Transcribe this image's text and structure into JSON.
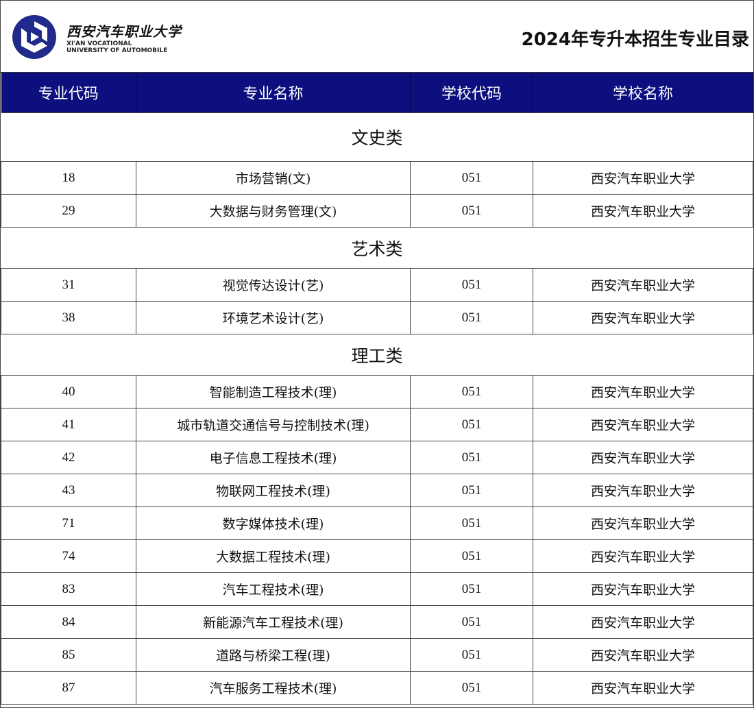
{
  "header": {
    "logo_cn": "西安汽车职业大学",
    "logo_en_1": "XI'AN VOCATIONAL",
    "logo_en_2": "UNIVERSITY OF AUTOMOBILE",
    "title": "2024年专升本招生专业目录",
    "brand_color": "#0d0f7e"
  },
  "table": {
    "columns": [
      "专业代码",
      "专业名称",
      "学校代码",
      "学校名称"
    ],
    "sections": [
      {
        "category": "文史类",
        "rows": [
          [
            "18",
            "市场营销(文)",
            "051",
            "西安汽车职业大学"
          ],
          [
            "29",
            "大数据与财务管理(文)",
            "051",
            "西安汽车职业大学"
          ]
        ]
      },
      {
        "category": "艺术类",
        "rows": [
          [
            "31",
            "视觉传达设计(艺)",
            "051",
            "西安汽车职业大学"
          ],
          [
            "38",
            "环境艺术设计(艺)",
            "051",
            "西安汽车职业大学"
          ]
        ]
      },
      {
        "category": "理工类",
        "rows": [
          [
            "40",
            "智能制造工程技术(理)",
            "051",
            "西安汽车职业大学"
          ],
          [
            "41",
            "城市轨道交通信号与控制技术(理)",
            "051",
            "西安汽车职业大学"
          ],
          [
            "42",
            "电子信息工程技术(理)",
            "051",
            "西安汽车职业大学"
          ],
          [
            "43",
            "物联网工程技术(理)",
            "051",
            "西安汽车职业大学"
          ],
          [
            "71",
            "数字媒体技术(理)",
            "051",
            "西安汽车职业大学"
          ],
          [
            "74",
            "大数据工程技术(理)",
            "051",
            "西安汽车职业大学"
          ],
          [
            "83",
            "汽车工程技术(理)",
            "051",
            "西安汽车职业大学"
          ],
          [
            "84",
            "新能源汽车工程技术(理)",
            "051",
            "西安汽车职业大学"
          ],
          [
            "85",
            "道路与桥梁工程(理)",
            "051",
            "西安汽车职业大学"
          ],
          [
            "87",
            "汽车服务工程技术(理)",
            "051",
            "西安汽车职业大学"
          ]
        ]
      }
    ]
  }
}
